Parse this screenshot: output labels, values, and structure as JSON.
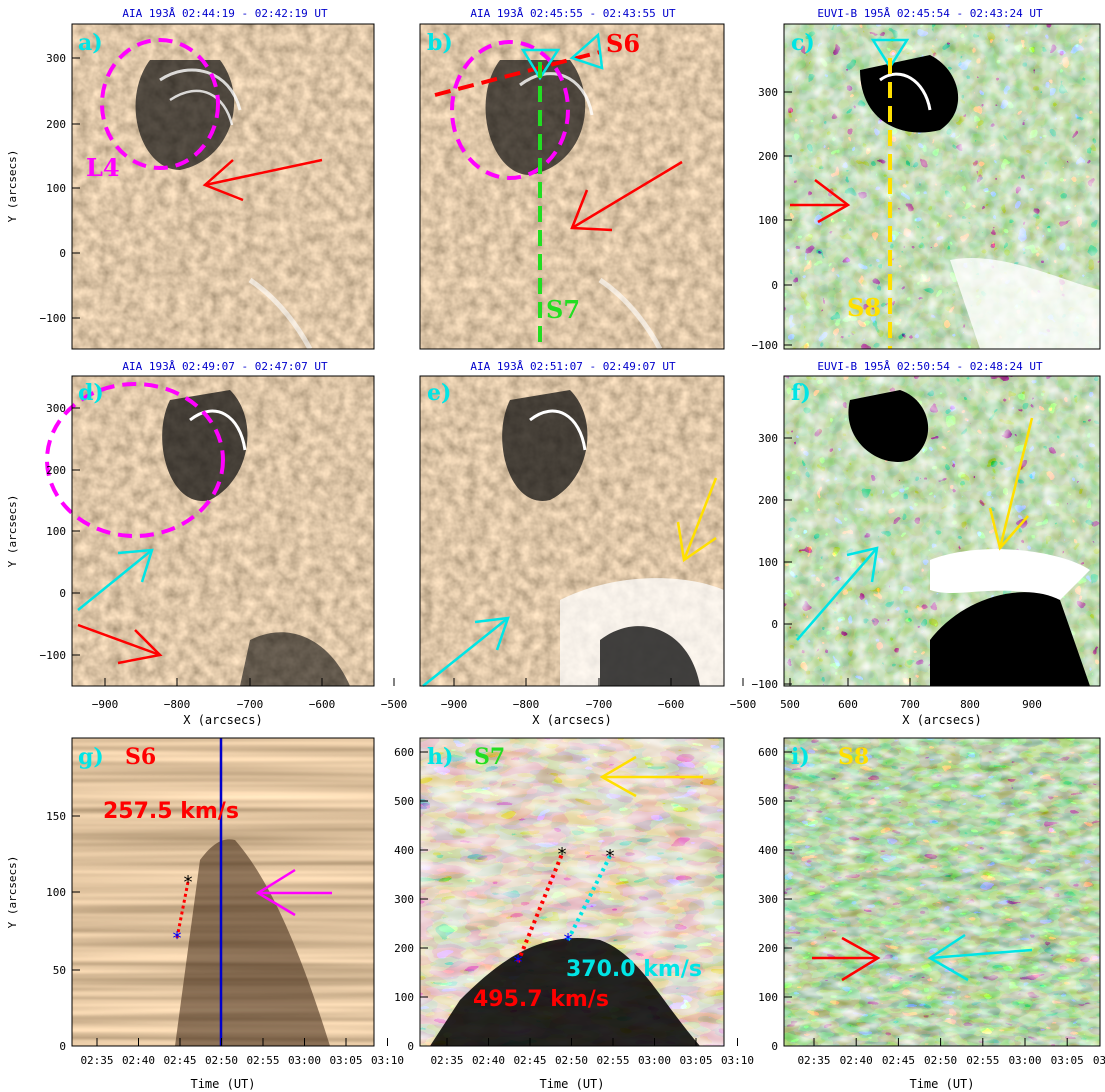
{
  "colors": {
    "axis": "#000000",
    "panel_title": "#0000cc",
    "aia_base": "#9e8260",
    "euvi_base": "#2f7a2a",
    "slice_base": "#7a5a3a",
    "magenta": "#ff00ff",
    "red": "#ff0000",
    "cyan": "#00e5e5",
    "green": "#22dd22",
    "yellow": "#ffe000",
    "blue": "#0000cc"
  },
  "panels": [
    {
      "id": "a",
      "letter": "a)",
      "title": "AIA 193Å 02:44:19 - 02:42:19 UT",
      "kind": "aia"
    },
    {
      "id": "b",
      "letter": "b)",
      "title": "AIA 193Å 02:45:55 - 02:43:55 UT",
      "kind": "aia"
    },
    {
      "id": "c",
      "letter": "c)",
      "title": "EUVI-B 195Å 02:45:54 - 02:43:24 UT",
      "kind": "euvi"
    },
    {
      "id": "d",
      "letter": "d)",
      "title": "AIA 193Å 02:49:07 - 02:47:07 UT",
      "kind": "aia"
    },
    {
      "id": "e",
      "letter": "e)",
      "title": "AIA 193Å 02:51:07 - 02:49:07 UT",
      "kind": "aia"
    },
    {
      "id": "f",
      "letter": "f)",
      "title": "EUVI-B 195Å 02:50:54 - 02:48:24 UT",
      "kind": "euvi"
    },
    {
      "id": "g",
      "letter": "g)",
      "slit": "S6",
      "kind": "slice"
    },
    {
      "id": "h",
      "letter": "h)",
      "slit": "S7",
      "kind": "slice"
    },
    {
      "id": "i",
      "letter": "i)",
      "slit": "S8",
      "kind": "slice"
    }
  ],
  "labels": {
    "loop": "L4",
    "slit_s6": "S6",
    "slit_s7": "S7",
    "slit_s8": "S8",
    "speed_g": "257.5 km/s",
    "speed_h_cyan": "370.0 km/s",
    "speed_h_red": "495.7 km/s"
  },
  "axes": {
    "y_label_images": "Y (arcsecs)",
    "x_label_images": "X (arcsecs)",
    "y_label_slices": "Y (arcsecs)",
    "x_label_slices": "Time (UT)",
    "aia_x_ticks": [
      "−900",
      "−800",
      "−700",
      "−600",
      "−500"
    ],
    "aia_y_ticks": [
      "300",
      "200",
      "100",
      "0",
      "−100"
    ],
    "euvi_x_ticks": [
      "500",
      "600",
      "700",
      "800",
      "900"
    ],
    "euvi_y_ticks": [
      "300",
      "200",
      "100",
      "0",
      "−100"
    ],
    "g_y_ticks": [
      "150",
      "100",
      "50",
      "0"
    ],
    "hi_y_ticks": [
      "600",
      "500",
      "400",
      "300",
      "200",
      "100",
      "0"
    ],
    "time_ticks": [
      "02:35",
      "02:40",
      "02:45",
      "02:50",
      "02:55",
      "03:00",
      "03:05",
      "03:10"
    ]
  }
}
